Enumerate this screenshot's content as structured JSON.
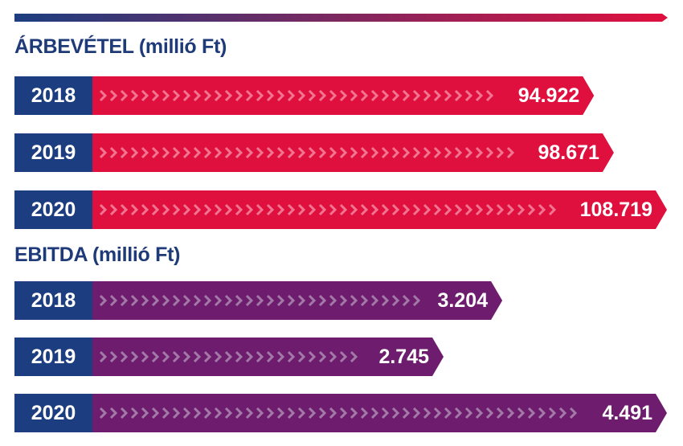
{
  "colors": {
    "year_box": "#1c3e80",
    "revenue_bar": "#e0103e",
    "revenue_chevron": "#f07591",
    "ebitda_bar": "#6e1c6d",
    "ebitda_chevron": "#a37aa7",
    "title": "#1e3a78",
    "top_line_start": "#1c3e80",
    "top_line_end": "#e0103e"
  },
  "chart_data": [
    {
      "type": "bar",
      "title": "ÁRBEVÉTEL (millió Ft)",
      "categories": [
        "2018",
        "2019",
        "2020"
      ],
      "values": [
        94922,
        98671,
        108719
      ],
      "value_labels": [
        "94.922",
        "98.671",
        "108.719"
      ],
      "orientation": "horizontal",
      "grid": false
    },
    {
      "type": "bar",
      "title": "EBITDA (millió Ft)",
      "categories": [
        "2018",
        "2019",
        "2020"
      ],
      "values": [
        3204,
        2745,
        4491
      ],
      "value_labels": [
        "3.204",
        "2.745",
        "4.491"
      ],
      "orientation": "horizontal",
      "grid": false
    }
  ]
}
